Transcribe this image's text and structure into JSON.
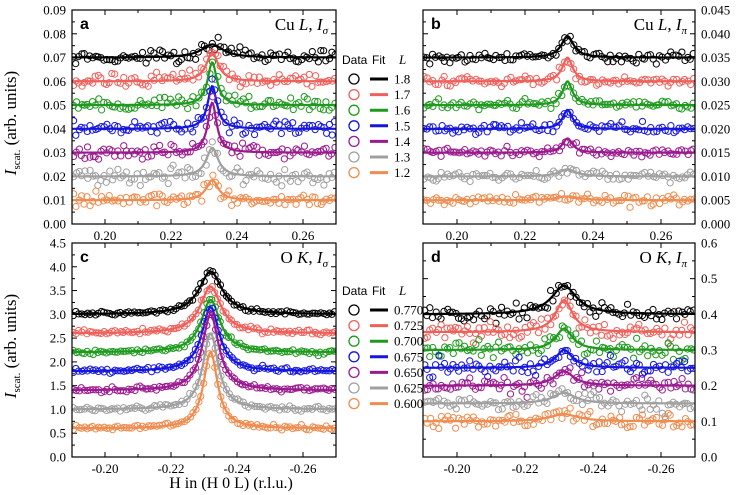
{
  "figure": {
    "y_axis_title_main": "I",
    "y_axis_title_sub": "scat.",
    "y_axis_title_rest": " (arb. units)",
    "x_axis_title": "H in (H 0 L) (r.l.u.)"
  },
  "legends": [
    {
      "header_data": "Data",
      "header_fit": "Fit",
      "header_var": "L",
      "entries": [
        {
          "label": "1.8",
          "color": "#000000"
        },
        {
          "label": "1.7",
          "color": "#f0605a"
        },
        {
          "label": "1.6",
          "color": "#1f9a1f"
        },
        {
          "label": "1.5",
          "color": "#1515e0"
        },
        {
          "label": "1.4",
          "color": "#9b1a8f"
        },
        {
          "label": "1.3",
          "color": "#a0a0a0"
        },
        {
          "label": "1.2",
          "color": "#f08c50"
        }
      ]
    },
    {
      "header_data": "Data",
      "header_fit": "Fit",
      "header_var": "L",
      "entries": [
        {
          "label": "0.770",
          "color": "#000000"
        },
        {
          "label": "0.725",
          "color": "#f0605a"
        },
        {
          "label": "0.700",
          "color": "#1f9a1f"
        },
        {
          "label": "0.675",
          "color": "#1515e0"
        },
        {
          "label": "0.650",
          "color": "#9b1a8f"
        },
        {
          "label": "0.625",
          "color": "#a0a0a0"
        },
        {
          "label": "0.600",
          "color": "#f08c50"
        }
      ]
    }
  ],
  "chart_data": [
    {
      "type": "scatter",
      "panel": "a",
      "title": "Cu L, Iσ",
      "title_parts": {
        "elem": "Cu ",
        "var": "L",
        "sep": ", ",
        "i": "I",
        "sub": "σ"
      },
      "xlim": [
        0.19,
        0.27
      ],
      "ylim": [
        0.0,
        0.09
      ],
      "xticks": [
        0.2,
        0.22,
        0.24,
        0.26
      ],
      "xtick_labels": [
        "0.20",
        "0.22",
        "0.24",
        "0.26"
      ],
      "yticks": [
        0.0,
        0.01,
        0.02,
        0.03,
        0.04,
        0.05,
        0.06,
        0.07,
        0.08,
        0.09
      ],
      "ytick_labels": [
        "0.00",
        "0.01",
        "0.02",
        "0.03",
        "0.04",
        "0.05",
        "0.06",
        "0.07",
        "0.08",
        "0.09"
      ],
      "y_axis_side": "left",
      "peak_center": 0.2325,
      "series": [
        {
          "name": "L = 1.8",
          "color": "#000000",
          "baseline": 0.07,
          "amplitude": 0.0055,
          "width": 0.004,
          "noise": 0.0015
        },
        {
          "name": "L = 1.7",
          "color": "#f0605a",
          "baseline": 0.06,
          "amplitude": 0.012,
          "width": 0.0022,
          "noise": 0.0015
        },
        {
          "name": "L = 1.6",
          "color": "#1f9a1f",
          "baseline": 0.05,
          "amplitude": 0.018,
          "width": 0.0017,
          "noise": 0.0015
        },
        {
          "name": "L = 1.5",
          "color": "#1515e0",
          "baseline": 0.04,
          "amplitude": 0.018,
          "width": 0.0017,
          "noise": 0.0015
        },
        {
          "name": "L = 1.4",
          "color": "#9b1a8f",
          "baseline": 0.03,
          "amplitude": 0.021,
          "width": 0.0016,
          "noise": 0.0015
        },
        {
          "name": "L = 1.3",
          "color": "#a0a0a0",
          "baseline": 0.02,
          "amplitude": 0.012,
          "width": 0.0022,
          "noise": 0.0016
        },
        {
          "name": "L = 1.2",
          "color": "#f08c50",
          "baseline": 0.01,
          "amplitude": 0.0085,
          "width": 0.0022,
          "noise": 0.0014
        }
      ]
    },
    {
      "type": "scatter",
      "panel": "b",
      "title": "Cu L, Iπ",
      "title_parts": {
        "elem": "Cu ",
        "var": "L",
        "sep": ", ",
        "i": "I",
        "sub": "π"
      },
      "xlim": [
        0.19,
        0.27
      ],
      "ylim": [
        0.0,
        0.045
      ],
      "xticks": [
        0.2,
        0.22,
        0.24,
        0.26
      ],
      "xtick_labels": [
        "0.20",
        "0.22",
        "0.24",
        "0.26"
      ],
      "yticks": [
        0.0,
        0.005,
        0.01,
        0.015,
        0.02,
        0.025,
        0.03,
        0.035,
        0.04,
        0.045
      ],
      "ytick_labels": [
        "0.000",
        "0.005",
        "0.010",
        "0.015",
        "0.020",
        "0.025",
        "0.030",
        "0.035",
        "0.040",
        "0.045"
      ],
      "y_axis_side": "right",
      "peak_center": 0.2325,
      "series": [
        {
          "name": "L = 1.8",
          "color": "#000000",
          "baseline": 0.035,
          "amplitude": 0.0045,
          "width": 0.0022,
          "noise": 0.0005
        },
        {
          "name": "L = 1.7",
          "color": "#f0605a",
          "baseline": 0.03,
          "amplitude": 0.005,
          "width": 0.0018,
          "noise": 0.0005
        },
        {
          "name": "L = 1.6",
          "color": "#1f9a1f",
          "baseline": 0.025,
          "amplitude": 0.005,
          "width": 0.0017,
          "noise": 0.0005
        },
        {
          "name": "L = 1.5",
          "color": "#1515e0",
          "baseline": 0.02,
          "amplitude": 0.004,
          "width": 0.0017,
          "noise": 0.0005
        },
        {
          "name": "L = 1.4",
          "color": "#9b1a8f",
          "baseline": 0.015,
          "amplitude": 0.003,
          "width": 0.0018,
          "noise": 0.0005
        },
        {
          "name": "L = 1.3",
          "color": "#a0a0a0",
          "baseline": 0.01,
          "amplitude": 0.0015,
          "width": 0.003,
          "noise": 0.0005
        },
        {
          "name": "L = 1.2",
          "color": "#f08c50",
          "baseline": 0.005,
          "amplitude": 0.0008,
          "width": 0.004,
          "noise": 0.0005
        }
      ]
    },
    {
      "type": "scatter",
      "panel": "c",
      "title": "O K, Iσ",
      "title_parts": {
        "elem": "O ",
        "var": "K",
        "sep": ", ",
        "i": "I",
        "sub": "σ"
      },
      "xlim": [
        -0.19,
        -0.27
      ],
      "ylim": [
        0.0,
        4.5
      ],
      "xticks": [
        -0.2,
        -0.22,
        -0.24,
        -0.26
      ],
      "xtick_labels": [
        "-0.20",
        "-0.22",
        "-0.24",
        "-0.26"
      ],
      "yticks": [
        0.0,
        0.5,
        1.0,
        1.5,
        2.0,
        2.5,
        3.0,
        3.5,
        4.0,
        4.5
      ],
      "ytick_labels": [
        "0.0",
        "0.5",
        "1.0",
        "1.5",
        "2.0",
        "2.5",
        "3.0",
        "3.5",
        "4.0",
        "4.5"
      ],
      "y_axis_side": "left",
      "peak_center": -0.232,
      "series": [
        {
          "name": "L = 0.770",
          "color": "#000000",
          "baseline": 3.0,
          "amplitude": 0.9,
          "width": 0.0042,
          "noise": 0.025
        },
        {
          "name": "L = 0.725",
          "color": "#f0605a",
          "baseline": 2.6,
          "amplitude": 0.98,
          "width": 0.0038,
          "noise": 0.025
        },
        {
          "name": "L = 0.700",
          "color": "#1f9a1f",
          "baseline": 2.2,
          "amplitude": 1.1,
          "width": 0.0035,
          "noise": 0.025
        },
        {
          "name": "L = 0.675",
          "color": "#1515e0",
          "baseline": 1.8,
          "amplitude": 1.35,
          "width": 0.0032,
          "noise": 0.025
        },
        {
          "name": "L = 0.650",
          "color": "#9b1a8f",
          "baseline": 1.4,
          "amplitude": 1.6,
          "width": 0.003,
          "noise": 0.025
        },
        {
          "name": "L = 0.625",
          "color": "#a0a0a0",
          "baseline": 1.0,
          "amplitude": 1.6,
          "width": 0.0028,
          "noise": 0.025
        },
        {
          "name": "L = 0.600",
          "color": "#f08c50",
          "baseline": 0.6,
          "amplitude": 1.6,
          "width": 0.0026,
          "noise": 0.025
        }
      ]
    },
    {
      "type": "scatter",
      "panel": "d",
      "title": "O K, Iπ",
      "title_parts": {
        "elem": "O ",
        "var": "K",
        "sep": ", ",
        "i": "I",
        "sub": "π"
      },
      "xlim": [
        -0.19,
        -0.27
      ],
      "ylim": [
        0.0,
        0.6
      ],
      "xticks": [
        -0.2,
        -0.22,
        -0.24,
        -0.26
      ],
      "xtick_labels": [
        "-0.20",
        "-0.22",
        "-0.24",
        "-0.26"
      ],
      "yticks": [
        0.0,
        0.1,
        0.2,
        0.3,
        0.4,
        0.5,
        0.6
      ],
      "ytick_labels": [
        "0.0",
        "0.1",
        "0.2",
        "0.3",
        "0.4",
        "0.5",
        "0.6"
      ],
      "y_axis_side": "right",
      "peak_center": -0.2315,
      "series": [
        {
          "name": "L = 0.770",
          "color": "#000000",
          "baseline": 0.4,
          "amplitude": 0.08,
          "width": 0.0045,
          "noise": 0.012
        },
        {
          "name": "L = 0.725",
          "color": "#f0605a",
          "baseline": 0.35,
          "amplitude": 0.09,
          "width": 0.003,
          "noise": 0.014
        },
        {
          "name": "L = 0.700",
          "color": "#1f9a1f",
          "baseline": 0.3,
          "amplitude": 0.06,
          "width": 0.003,
          "noise": 0.012
        },
        {
          "name": "L = 0.675",
          "color": "#1515e0",
          "baseline": 0.25,
          "amplitude": 0.05,
          "width": 0.003,
          "noise": 0.011
        },
        {
          "name": "L = 0.650",
          "color": "#9b1a8f",
          "baseline": 0.2,
          "amplitude": 0.04,
          "width": 0.0035,
          "noise": 0.011
        },
        {
          "name": "L = 0.625",
          "color": "#a0a0a0",
          "baseline": 0.15,
          "amplitude": 0.03,
          "width": 0.004,
          "noise": 0.011
        },
        {
          "name": "L = 0.600",
          "color": "#f08c50",
          "baseline": 0.1,
          "amplitude": 0.02,
          "width": 0.005,
          "noise": 0.012
        }
      ]
    }
  ]
}
